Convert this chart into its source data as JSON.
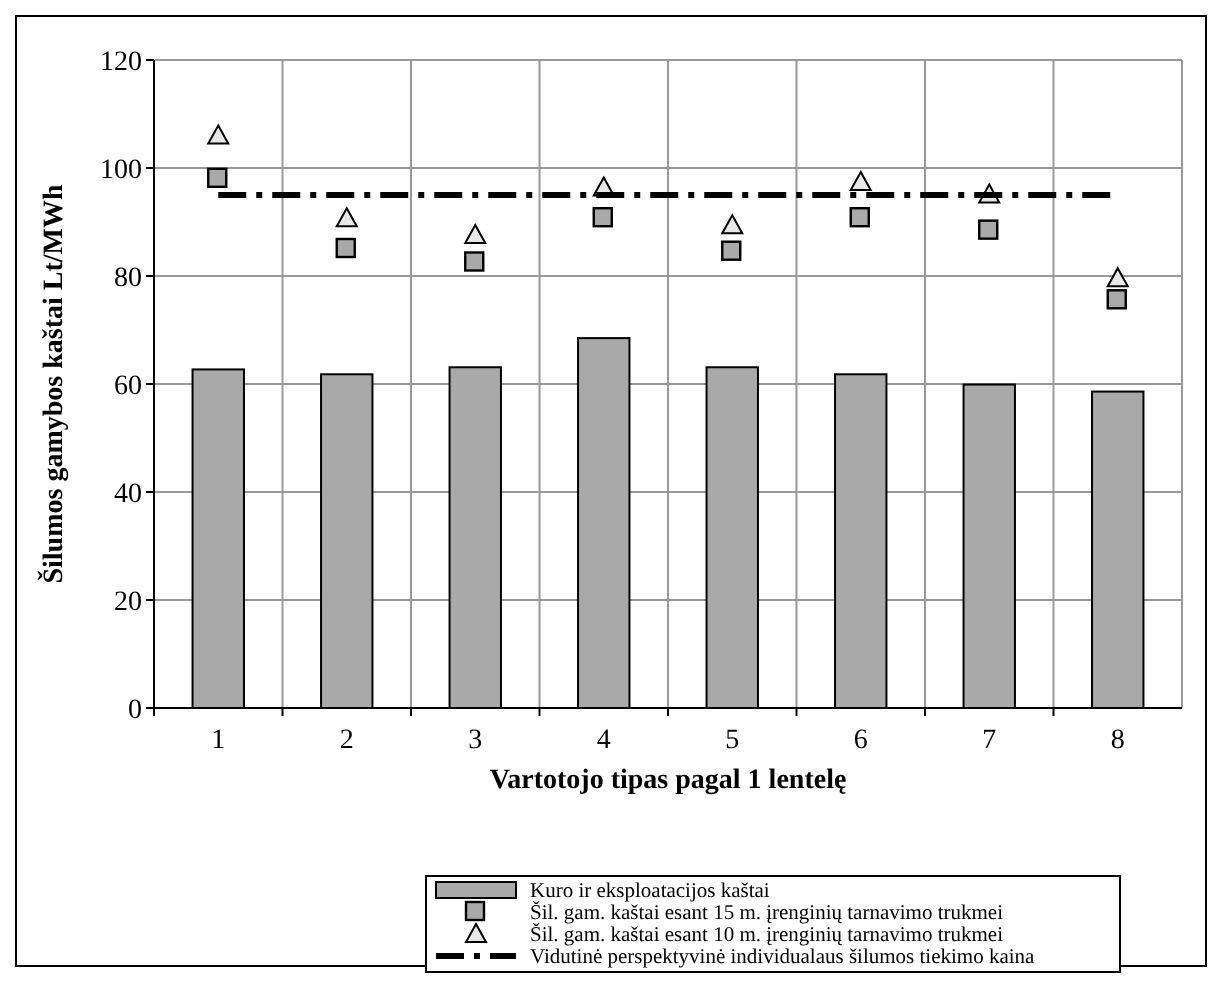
{
  "chart_data": {
    "type": "bar",
    "xlabel": "Vartotojo tipas pagal 1 lentelę",
    "ylabel": "Šilumos gamybos kaštai Lt/MWh",
    "categories": [
      "1",
      "2",
      "3",
      "4",
      "5",
      "6",
      "7",
      "8"
    ],
    "ylim": [
      0,
      120
    ],
    "yticks": [
      0,
      20,
      40,
      60,
      80,
      100,
      120
    ],
    "grid": true,
    "legend": "bottom",
    "series": [
      {
        "name": "Kuro ir eksploatacijos kaštai",
        "color": "#a9a9a9",
        "values": [
          62.7,
          61.8,
          63.1,
          68.5,
          63.1,
          61.8,
          59.9,
          58.6
        ]
      },
      {
        "name": "Šil. gam. kaštai esant 15 m. įrenginių tarnavimo trukmei",
        "type": "scatter",
        "marker": "square",
        "color": "#a9a9a9",
        "values": [
          98,
          85,
          82.5,
          90.7,
          84.5,
          90.7,
          88.4,
          75.5
        ]
      },
      {
        "name": "Šil. gam. kaštai esant 10 m. įrenginių tarnavimo trukmei",
        "type": "scatter",
        "marker": "triangle",
        "color": "#e8e8e8",
        "values": [
          106,
          90.7,
          87.6,
          96.4,
          89.4,
          97.4,
          95.1,
          79.6
        ]
      },
      {
        "name": "Vidutinė perspektyvinė individualaus šilumos tiekimo kaina",
        "type": "line",
        "marker": "none",
        "line_style": "dashed",
        "color": "#000000",
        "values": [
          95,
          95,
          95,
          95,
          95,
          95,
          95,
          95
        ]
      }
    ]
  }
}
